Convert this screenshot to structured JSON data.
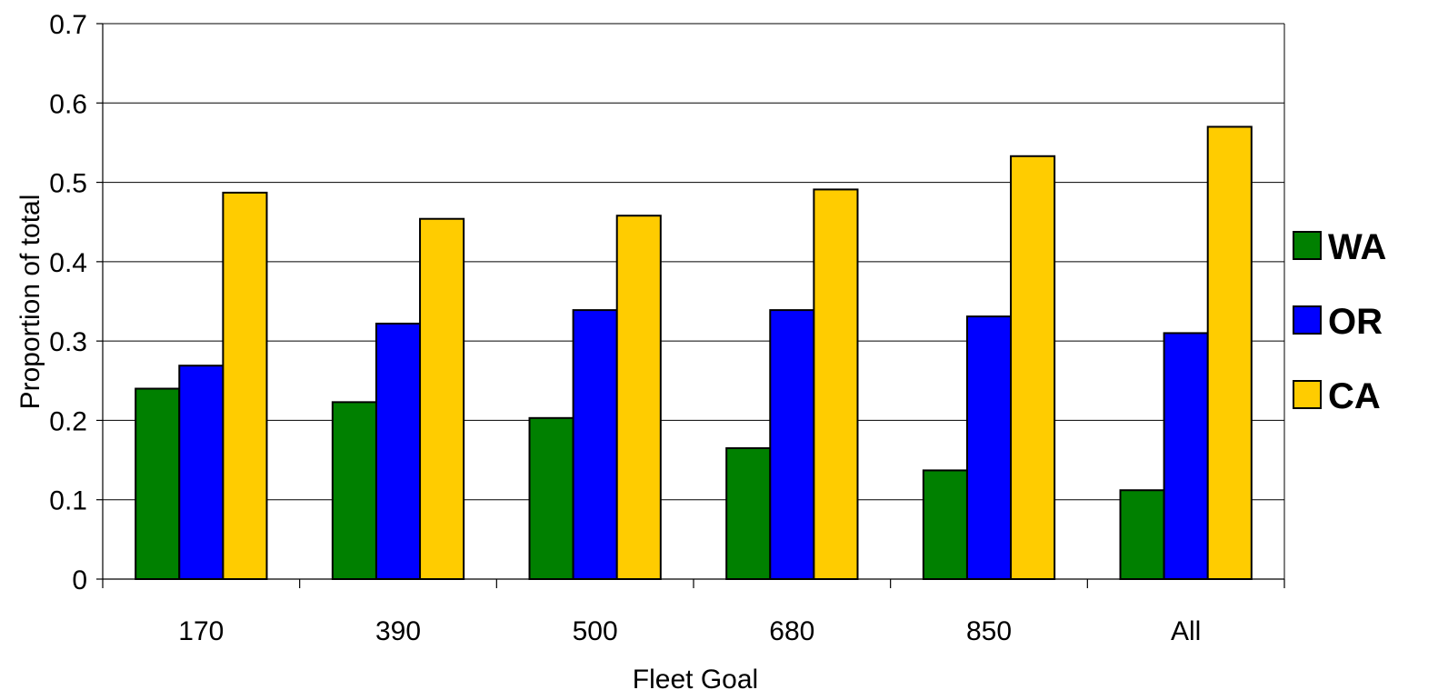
{
  "chart_data": {
    "type": "bar",
    "title": "",
    "xlabel": "Fleet Goal",
    "ylabel": "Proportion of total",
    "categories": [
      "170",
      "390",
      "500",
      "680",
      "850",
      "All"
    ],
    "ylim": [
      0,
      0.7
    ],
    "yticks": [
      0,
      0.1,
      0.2,
      0.3,
      0.4,
      0.5,
      0.6,
      0.7
    ],
    "ytick_labels": [
      "0",
      "0.1",
      "0.2",
      "0.3",
      "0.4",
      "0.5",
      "0.6",
      "0.7"
    ],
    "grid": true,
    "legend_position": "right",
    "series": [
      {
        "name": "WA",
        "color": "#008000",
        "values": [
          0.24,
          0.223,
          0.203,
          0.165,
          0.137,
          0.112
        ]
      },
      {
        "name": "OR",
        "color": "#0000FF",
        "values": [
          0.269,
          0.322,
          0.339,
          0.339,
          0.331,
          0.31
        ]
      },
      {
        "name": "CA",
        "color": "#FFCC00",
        "values": [
          0.487,
          0.454,
          0.458,
          0.491,
          0.533,
          0.57
        ]
      }
    ]
  }
}
